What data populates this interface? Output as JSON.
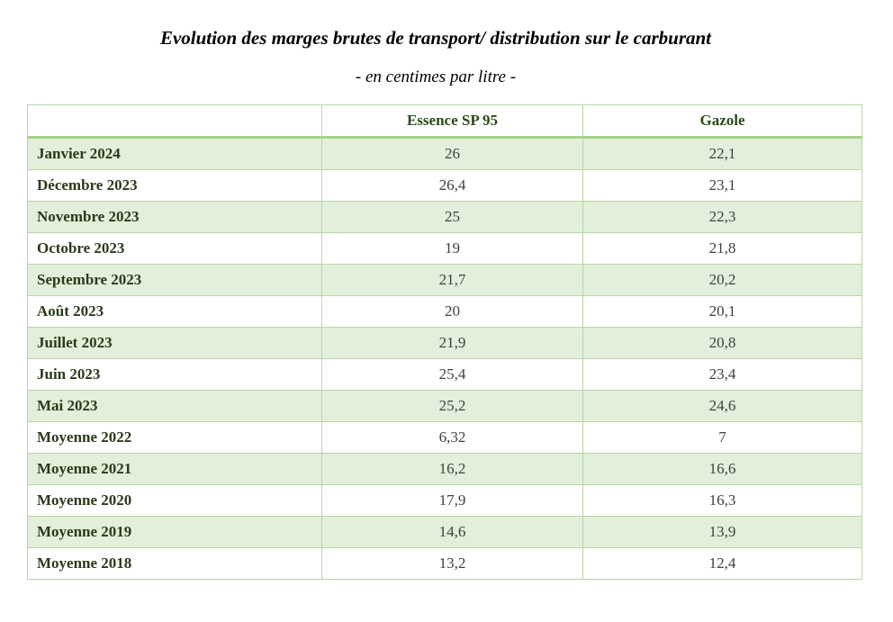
{
  "title": "Evolution des marges brutes de transport/ distribution sur le carburant",
  "subtitle": "- en centimes par litre -",
  "table": {
    "headers": [
      "",
      "Essence SP 95",
      "Gazole"
    ],
    "rows": [
      {
        "label": "Janvier 2024",
        "sp95": "26",
        "gazole": "22,1"
      },
      {
        "label": "Décembre 2023",
        "sp95": "26,4",
        "gazole": "23,1"
      },
      {
        "label": "Novembre 2023",
        "sp95": "25",
        "gazole": "22,3"
      },
      {
        "label": "Octobre 2023",
        "sp95": "19",
        "gazole": "21,8"
      },
      {
        "label": "Septembre 2023",
        "sp95": "21,7",
        "gazole": "20,2"
      },
      {
        "label": "Août 2023",
        "sp95": "20",
        "gazole": "20,1"
      },
      {
        "label": "Juillet 2023",
        "sp95": "21,9",
        "gazole": "20,8"
      },
      {
        "label": "Juin 2023",
        "sp95": "25,4",
        "gazole": "23,4"
      },
      {
        "label": "Mai 2023",
        "sp95": "25,2",
        "gazole": "24,6"
      },
      {
        "label": "Moyenne 2022",
        "sp95": "6,32",
        "gazole": "7"
      },
      {
        "label": "Moyenne 2021",
        "sp95": "16,2",
        "gazole": "16,6"
      },
      {
        "label": "Moyenne 2020",
        "sp95": "17,9",
        "gazole": "16,3"
      },
      {
        "label": "Moyenne 2019",
        "sp95": "14,6",
        "gazole": "13,9"
      },
      {
        "label": "Moyenne 2018",
        "sp95": "13,2",
        "gazole": "12,4"
      }
    ]
  },
  "colors": {
    "band": "#e2efda",
    "border": "#b5d6a3",
    "header_rule": "#a9d08e",
    "header_text": "#2a4a1a"
  }
}
